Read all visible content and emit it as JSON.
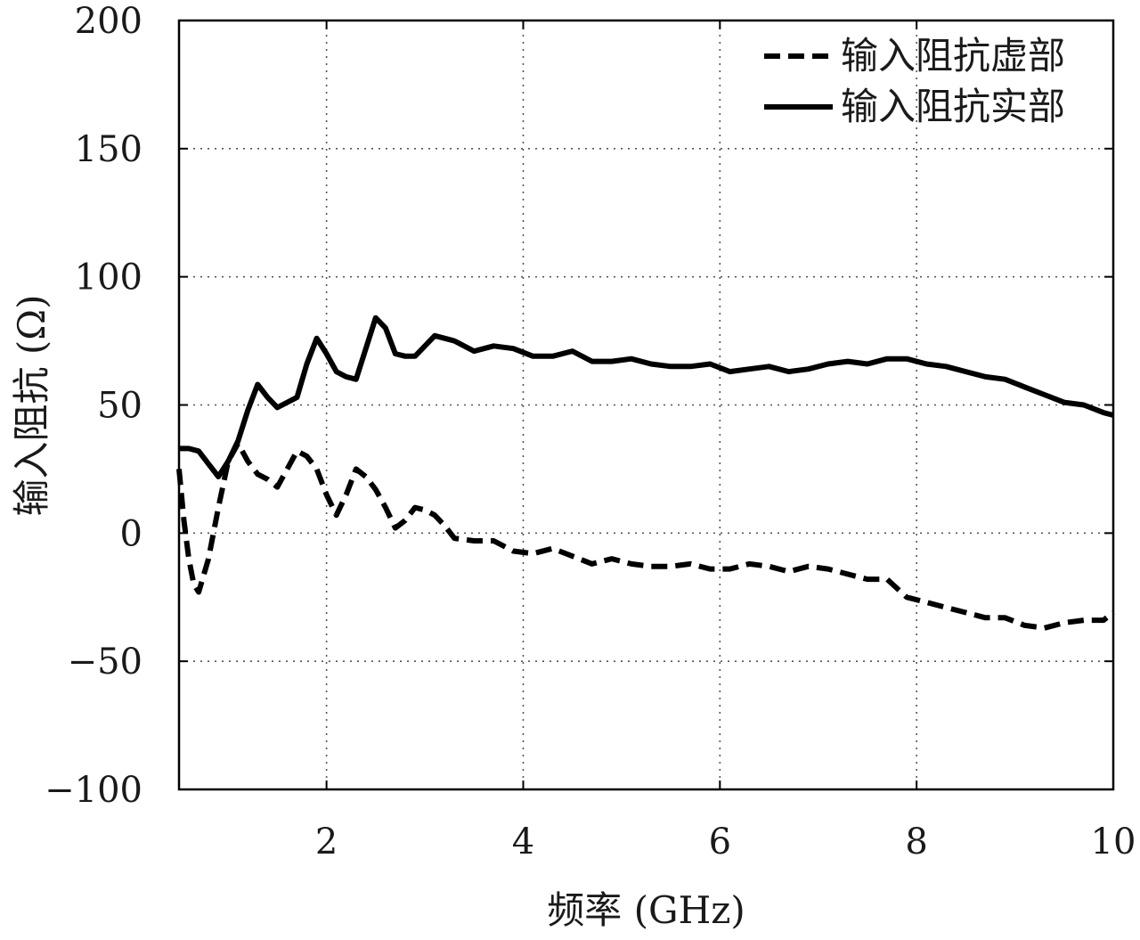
{
  "chart_data": {
    "type": "line",
    "title": "",
    "xlabel": "频率 (GHz)",
    "ylabel": "输入阻抗 (Ω)",
    "xlim": [
      0.5,
      10
    ],
    "ylim": [
      -100,
      200
    ],
    "xticks": [
      2,
      4,
      6,
      8,
      10
    ],
    "yticks": [
      -100,
      -50,
      0,
      50,
      100,
      150,
      200
    ],
    "xtick_labels": [
      "2",
      "4",
      "6",
      "8",
      "10"
    ],
    "ytick_labels": [
      "−100",
      "−50",
      "0",
      "50",
      "100",
      "150",
      "200"
    ],
    "grid": true,
    "legend_position": "top-right",
    "series": [
      {
        "name": "输入阻抗虚部",
        "style": "dashed",
        "color": "#000000",
        "x": [
          0.5,
          0.55,
          0.6,
          0.65,
          0.7,
          0.8,
          0.9,
          1.0,
          1.1,
          1.2,
          1.3,
          1.4,
          1.5,
          1.6,
          1.7,
          1.8,
          1.9,
          2.0,
          2.1,
          2.2,
          2.3,
          2.4,
          2.5,
          2.6,
          2.7,
          2.8,
          2.9,
          3.0,
          3.1,
          3.2,
          3.3,
          3.5,
          3.7,
          3.9,
          4.1,
          4.3,
          4.5,
          4.7,
          4.9,
          5.1,
          5.3,
          5.5,
          5.7,
          5.9,
          6.1,
          6.3,
          6.5,
          6.7,
          6.9,
          7.1,
          7.3,
          7.5,
          7.7,
          7.9,
          8.1,
          8.3,
          8.5,
          8.7,
          8.9,
          9.1,
          9.3,
          9.5,
          9.7,
          9.9,
          10.0
        ],
        "values": [
          25,
          5,
          -10,
          -20,
          -23,
          -10,
          10,
          28,
          35,
          28,
          23,
          21,
          18,
          25,
          32,
          30,
          25,
          15,
          7,
          15,
          25,
          22,
          17,
          10,
          2,
          5,
          10,
          9,
          7,
          3,
          -2,
          -3,
          -3,
          -7,
          -8,
          -6,
          -9,
          -12,
          -10,
          -12,
          -13,
          -13,
          -12,
          -14,
          -14,
          -12,
          -13,
          -15,
          -13,
          -14,
          -16,
          -18,
          -18,
          -25,
          -27,
          -29,
          -31,
          -33,
          -33,
          -36,
          -37,
          -35,
          -34,
          -34,
          -31
        ]
      },
      {
        "name": "输入阻抗实部",
        "style": "solid",
        "color": "#000000",
        "x": [
          0.5,
          0.6,
          0.7,
          0.8,
          0.9,
          1.0,
          1.1,
          1.2,
          1.3,
          1.4,
          1.5,
          1.6,
          1.7,
          1.8,
          1.9,
          2.0,
          2.1,
          2.2,
          2.3,
          2.4,
          2.5,
          2.6,
          2.7,
          2.8,
          2.9,
          3.0,
          3.1,
          3.2,
          3.3,
          3.5,
          3.7,
          3.9,
          4.1,
          4.3,
          4.5,
          4.7,
          4.9,
          5.1,
          5.3,
          5.5,
          5.7,
          5.9,
          6.1,
          6.3,
          6.5,
          6.7,
          6.9,
          7.1,
          7.3,
          7.5,
          7.7,
          7.9,
          8.1,
          8.3,
          8.5,
          8.7,
          8.9,
          9.1,
          9.3,
          9.5,
          9.7,
          9.9,
          10.0
        ],
        "values": [
          33,
          33,
          32,
          27,
          22,
          28,
          36,
          48,
          58,
          53,
          49,
          51,
          53,
          66,
          76,
          70,
          63,
          61,
          60,
          72,
          84,
          80,
          70,
          69,
          69,
          73,
          77,
          76,
          75,
          71,
          73,
          72,
          69,
          69,
          71,
          67,
          67,
          68,
          66,
          65,
          65,
          66,
          63,
          64,
          65,
          63,
          64,
          66,
          67,
          66,
          68,
          68,
          66,
          65,
          63,
          61,
          60,
          57,
          54,
          51,
          50,
          47,
          46
        ]
      }
    ]
  }
}
